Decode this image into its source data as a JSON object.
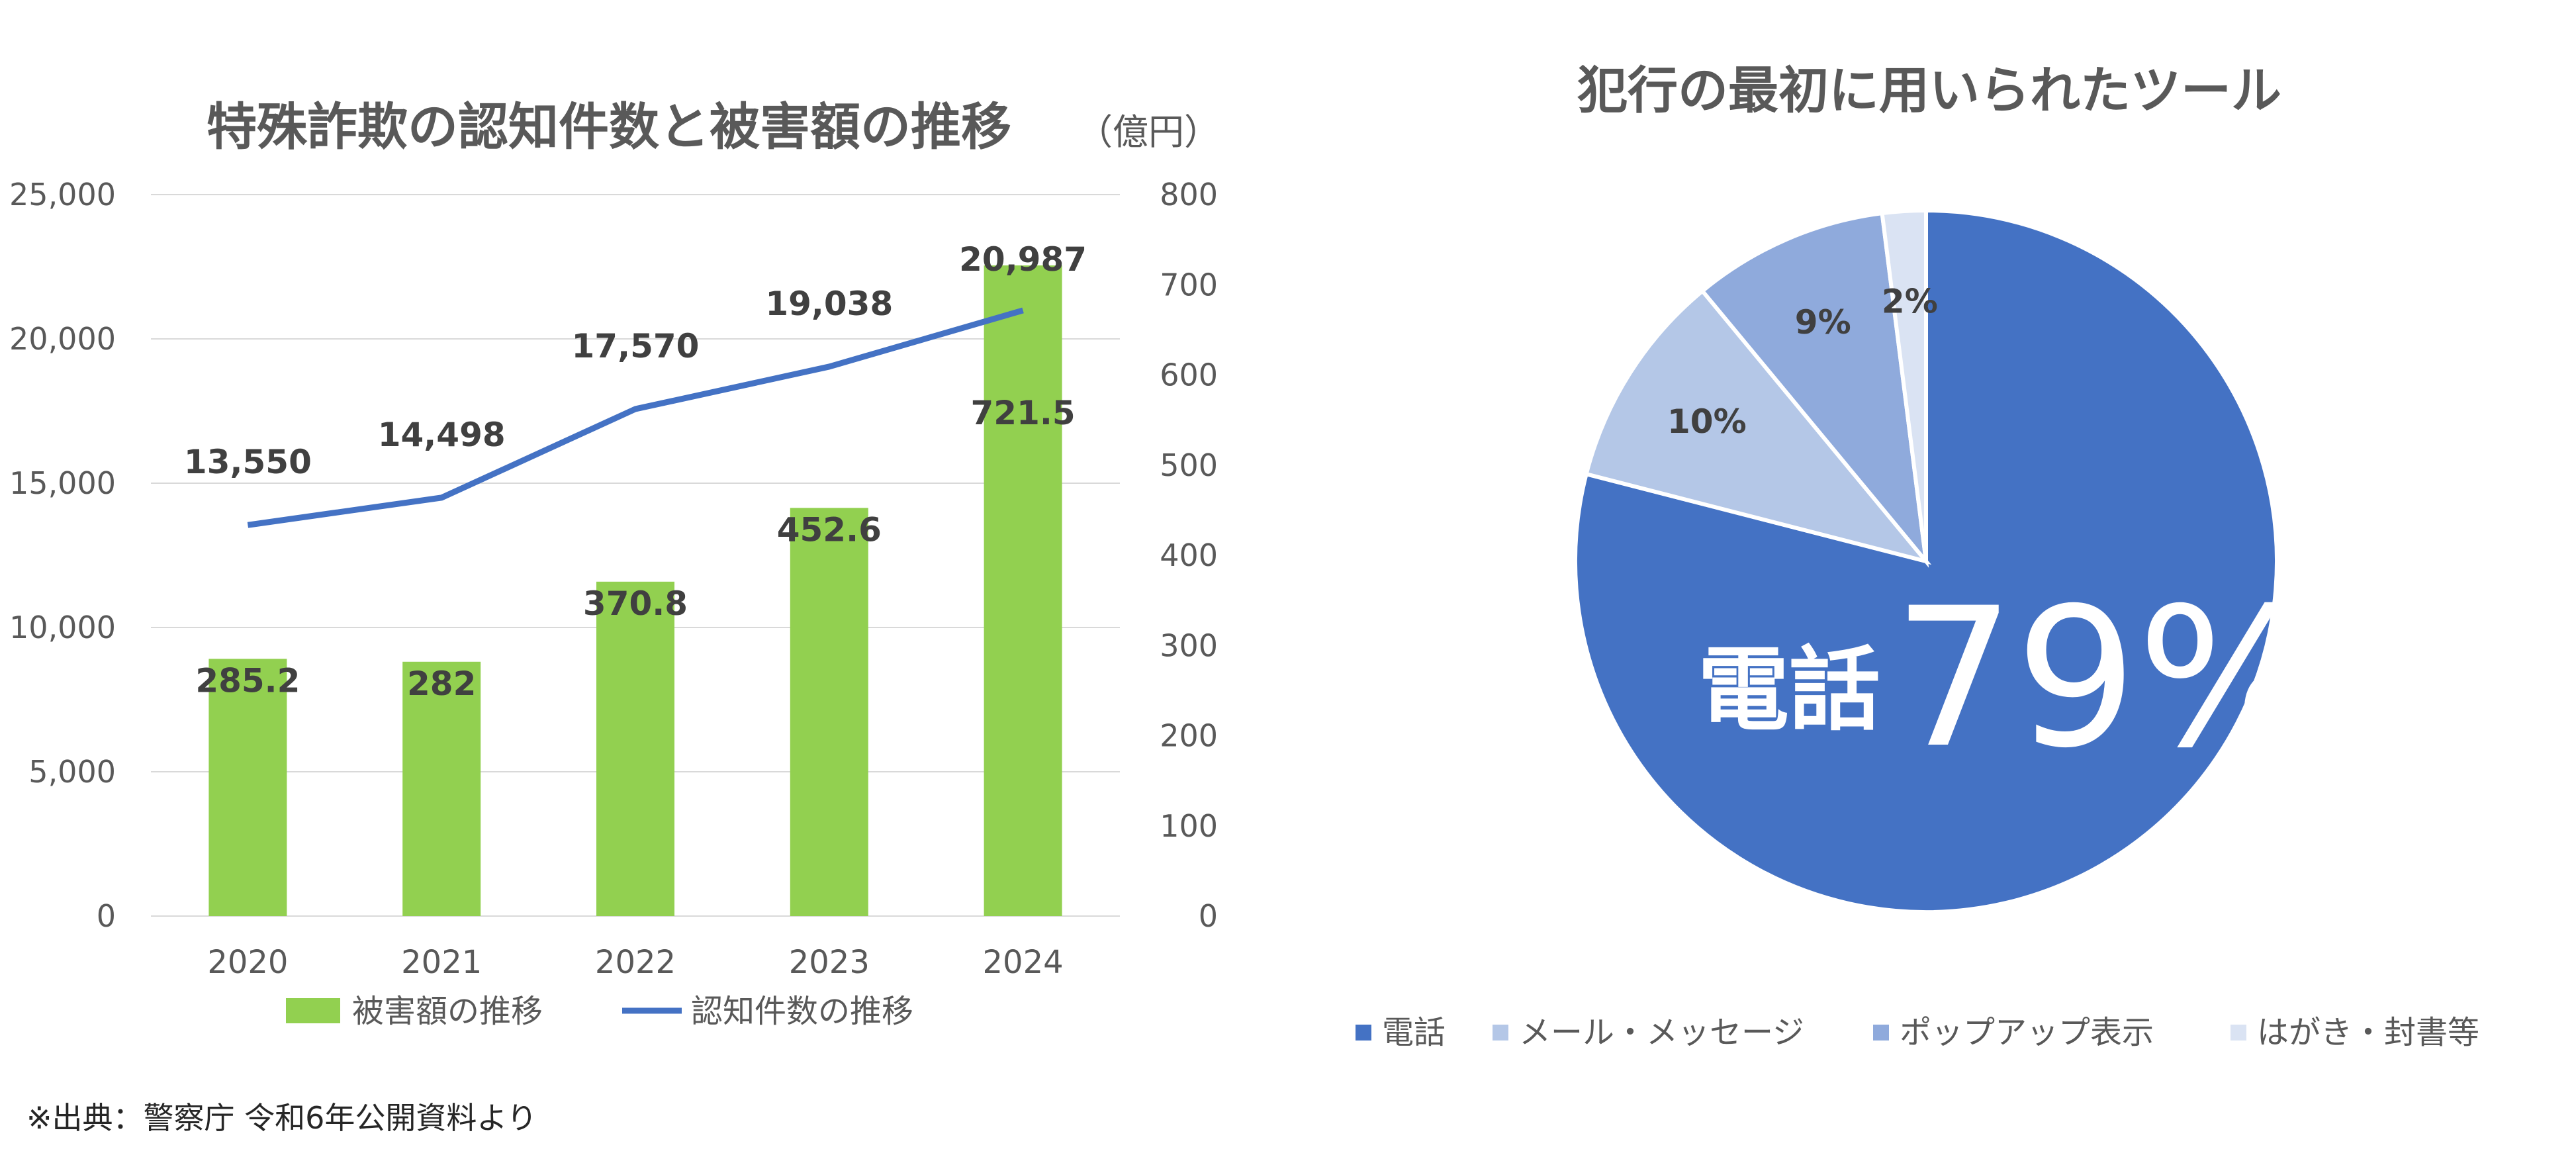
{
  "note": "※出典：警察庁 令和6年公開資料より",
  "chart_data": [
    {
      "type": "bar",
      "title": "特殊詐欺の認知件数と被害額の推移",
      "unit_label": "（億円）",
      "categories": [
        "2020",
        "2021",
        "2022",
        "2023",
        "2024"
      ],
      "y_left": {
        "min": 0,
        "max": 25000,
        "ticks": [
          "0",
          "5,000",
          "10,000",
          "15,000",
          "20,000",
          "25,000"
        ]
      },
      "y_right": {
        "min": 0,
        "max": 800,
        "ticks": [
          "0",
          "100",
          "200",
          "300",
          "400",
          "500",
          "600",
          "700",
          "800"
        ]
      },
      "grid": true,
      "legend_position": "bottom",
      "series": [
        {
          "name": "被害額の推移",
          "type": "bar",
          "axis": "right",
          "color": "#92d050",
          "values": [
            285.2,
            282,
            370.8,
            452.6,
            721.5
          ],
          "labels": [
            "285.2",
            "282",
            "370.8",
            "452.6",
            "721.5"
          ]
        },
        {
          "name": "認知件数の推移",
          "type": "line",
          "axis": "left",
          "color": "#4472c4",
          "values": [
            13550,
            14498,
            17570,
            19038,
            20987
          ],
          "labels": [
            "13,550",
            "14,498",
            "17,570",
            "19,038",
            "20,987"
          ]
        }
      ]
    },
    {
      "type": "pie",
      "title": "犯行の最初に用いられたツール",
      "legend_position": "bottom",
      "categories": [
        "電話",
        "メール・メッセージ",
        "ポップアップ表示",
        "はがき・封書等"
      ],
      "values": [
        79,
        10,
        9,
        2
      ],
      "labels": [
        "79%",
        "10%",
        "9%",
        "2%"
      ],
      "highlight_label": "電話",
      "colors": [
        "#4472c4",
        "#b4c7e7",
        "#8faadc",
        "#dae3f3"
      ]
    }
  ]
}
